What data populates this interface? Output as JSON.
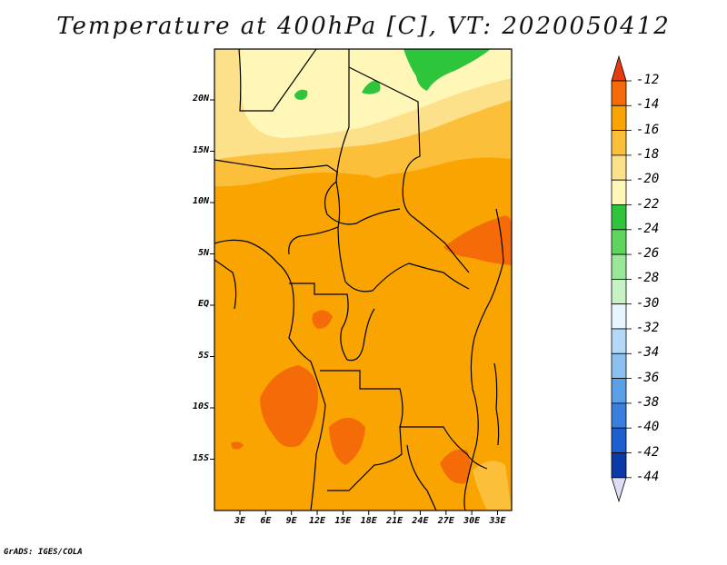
{
  "title": "Temperature at 400hPa [C], VT: 2020050412",
  "credit": "GrADS: IGES/COLA",
  "map": {
    "lat_labels": [
      "20N",
      "15N",
      "10N",
      "5N",
      "EQ",
      "5S",
      "10S",
      "15S"
    ],
    "lon_labels": [
      "3E",
      "6E",
      "9E",
      "12E",
      "15E",
      "18E",
      "21E",
      "24E",
      "27E",
      "30E",
      "33E"
    ],
    "lat_range": [
      -19,
      24
    ],
    "lon_range": [
      0,
      34
    ]
  },
  "colorbar": {
    "levels": [
      "-12",
      "-14",
      "-16",
      "-18",
      "-20",
      "-22",
      "-24",
      "-26",
      "-28",
      "-30",
      "-32",
      "-34",
      "-36",
      "-38",
      "-40",
      "-42",
      "-44"
    ],
    "colors": [
      "#e83a10",
      "#f46b08",
      "#f9a400",
      "#fcbf3a",
      "#fde08a",
      "#fff7b8",
      "#2ec43c",
      "#5cd65c",
      "#98e898",
      "#c6f2c6",
      "#e6f5ff",
      "#b4d8f8",
      "#8cc0f0",
      "#5aa0e8",
      "#3a7fe0",
      "#1e5fd0",
      "#0a3aa8",
      "#081a78",
      "#dcdcf4"
    ]
  }
}
